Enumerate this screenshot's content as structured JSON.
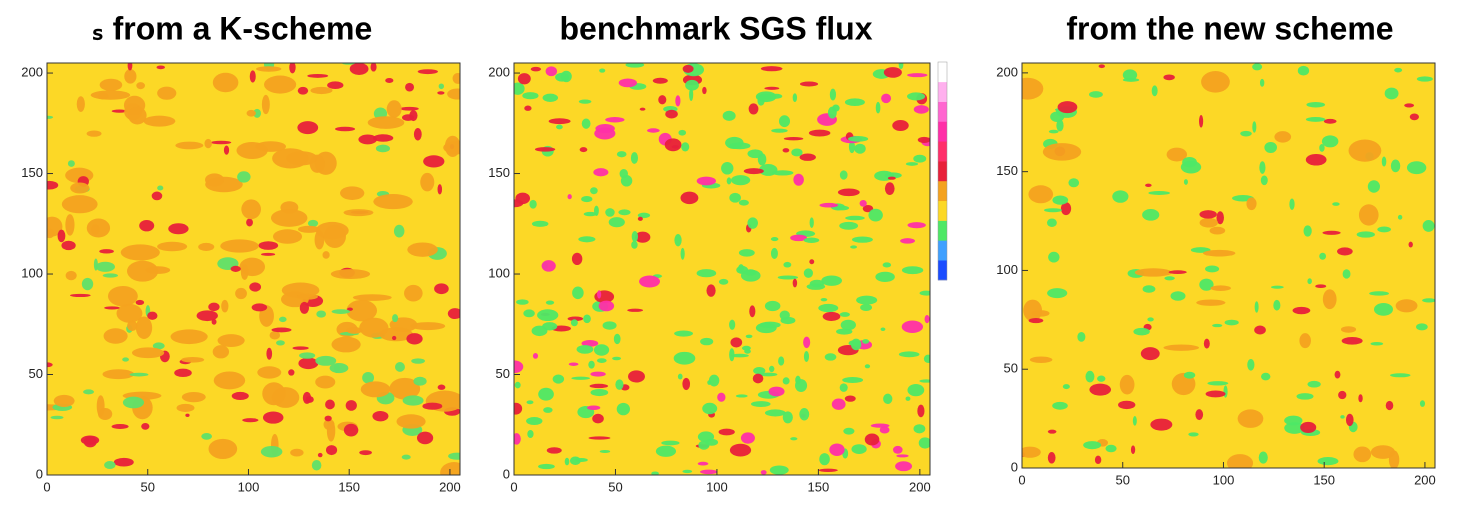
{
  "chart_data": [
    {
      "type": "heatmap",
      "title": "ₛ from a K-scheme",
      "xlim": [
        0,
        205
      ],
      "ylim": [
        0,
        205
      ],
      "xticks": [
        0,
        50,
        100,
        150,
        200
      ],
      "yticks": [
        0,
        50,
        100,
        150,
        200
      ],
      "background_color": "#fcd826",
      "patch_colors": [
        "#f4a21f",
        "#f4a21f",
        "#f4a21f",
        "#e8203a",
        "#e8203a",
        "#5fe06a"
      ]
    },
    {
      "type": "heatmap",
      "title": "benchmark SGS flux",
      "xlim": [
        0,
        205
      ],
      "ylim": [
        0,
        205
      ],
      "xticks": [
        0,
        50,
        100,
        150,
        200
      ],
      "yticks": [
        0,
        50,
        100,
        150,
        200
      ],
      "background_color": "#fcd826",
      "patch_colors": [
        "#4ee866",
        "#4ee866",
        "#4ee866",
        "#4ee866",
        "#e8203a",
        "#ff2fa8"
      ],
      "colorbar_colors": [
        "#1a4cff",
        "#3fa0ff",
        "#4ee866",
        "#fcd826",
        "#f4a21f",
        "#e8203a",
        "#ff2f6a",
        "#ff2fa8",
        "#ff66d0",
        "#ffb0ee",
        "#ffffff"
      ]
    },
    {
      "type": "heatmap",
      "title": "from the new scheme",
      "xlim": [
        0,
        205
      ],
      "ylim": [
        0,
        205
      ],
      "xticks": [
        0,
        50,
        100,
        150,
        200
      ],
      "yticks": [
        0,
        50,
        100,
        150,
        200
      ],
      "background_color": "#fcd826",
      "patch_colors": [
        "#4ee866",
        "#4ee866",
        "#4ee866",
        "#e8203a",
        "#f4a21f"
      ]
    }
  ]
}
